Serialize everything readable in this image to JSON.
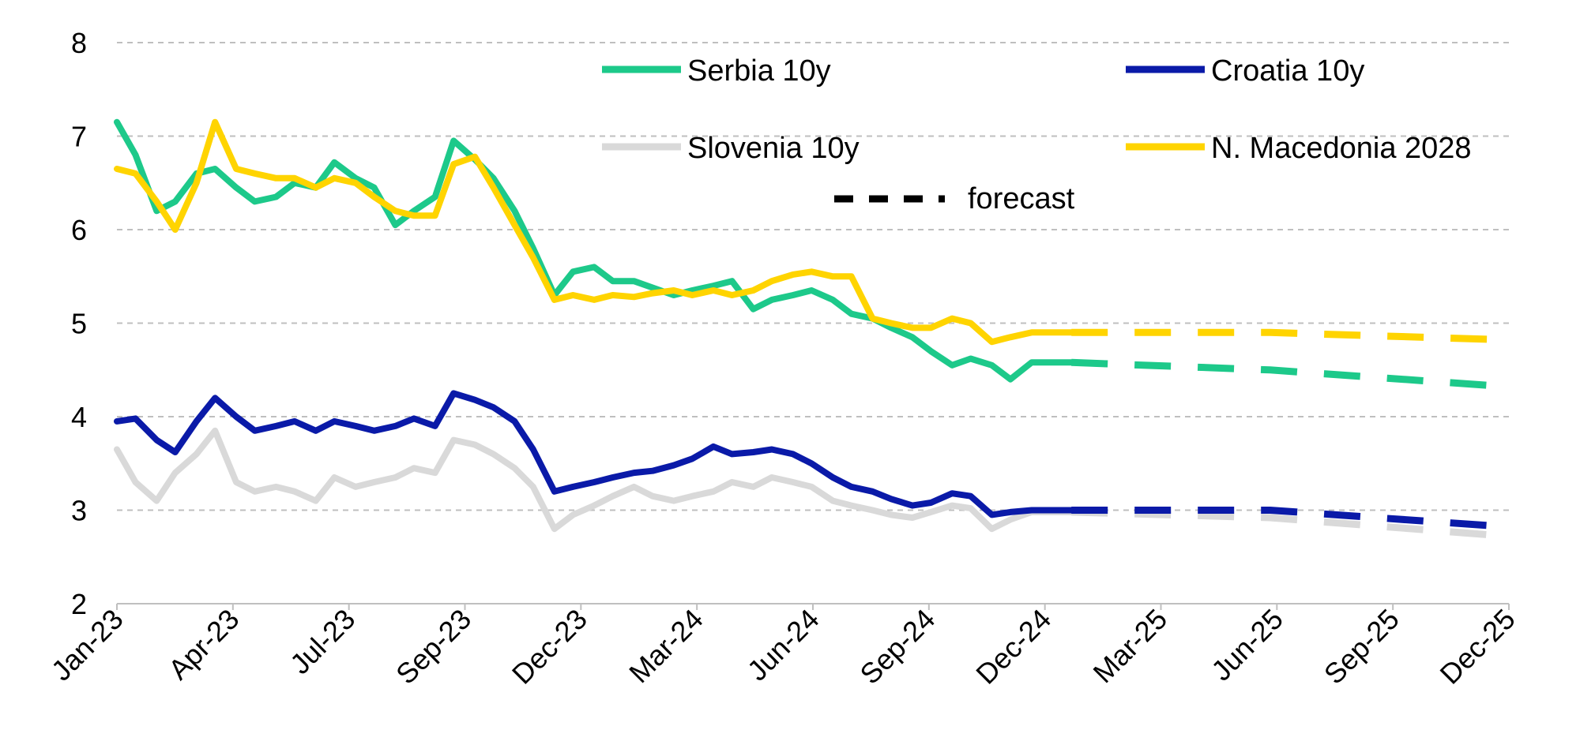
{
  "chart_data": {
    "type": "line",
    "title": "",
    "xlabel": "",
    "ylabel": "",
    "ylim": [
      2,
      8
    ],
    "yticks": [
      2,
      3,
      4,
      5,
      6,
      7,
      8
    ],
    "xlim": [
      "2023-01",
      "2025-12"
    ],
    "xticks": [
      "Jan-23",
      "Apr-23",
      "Jul-23",
      "Sep-23",
      "Dec-23",
      "Mar-24",
      "Jun-24",
      "Sep-24",
      "Dec-24",
      "Mar-25",
      "Jun-25",
      "Sep-25",
      "Dec-25"
    ],
    "grid": "horizontal dashed",
    "legend_placement": "top-right",
    "legend": {
      "serbia": "Serbia 10y",
      "croatia": "Croatia 10y",
      "slovenia": "Slovenia 10y",
      "macedonia": "N. Macedonia 2028",
      "forecast": "forecast"
    },
    "series": [
      {
        "key": "serbia",
        "name": "Serbia 10y",
        "color": "#1dc98a",
        "actual": [
          [
            "2023-01",
            7.15
          ],
          [
            "2023-01-15",
            6.8
          ],
          [
            "2023-02",
            6.2
          ],
          [
            "2023-02-15",
            6.3
          ],
          [
            "2023-03",
            6.6
          ],
          [
            "2023-03-15",
            6.65
          ],
          [
            "2023-04",
            6.45
          ],
          [
            "2023-04-15",
            6.3
          ],
          [
            "2023-05",
            6.35
          ],
          [
            "2023-05-15",
            6.5
          ],
          [
            "2023-06",
            6.45
          ],
          [
            "2023-06-15",
            6.72
          ],
          [
            "2023-07",
            6.55
          ],
          [
            "2023-07-15",
            6.45
          ],
          [
            "2023-08",
            6.05
          ],
          [
            "2023-08-15",
            6.2
          ],
          [
            "2023-09",
            6.35
          ],
          [
            "2023-09-15",
            6.95
          ],
          [
            "2023-10",
            6.75
          ],
          [
            "2023-10-15",
            6.55
          ],
          [
            "2023-11",
            6.2
          ],
          [
            "2023-11-15",
            5.8
          ],
          [
            "2023-12",
            5.3
          ],
          [
            "2023-12-15",
            5.55
          ],
          [
            "2024-01",
            5.6
          ],
          [
            "2024-01-15",
            5.45
          ],
          [
            "2024-02",
            5.45
          ],
          [
            "2024-02-15",
            5.38
          ],
          [
            "2024-03",
            5.3
          ],
          [
            "2024-03-15",
            5.35
          ],
          [
            "2024-04",
            5.4
          ],
          [
            "2024-04-15",
            5.45
          ],
          [
            "2024-05",
            5.15
          ],
          [
            "2024-05-15",
            5.25
          ],
          [
            "2024-06",
            5.3
          ],
          [
            "2024-06-15",
            5.35
          ],
          [
            "2024-07",
            5.25
          ],
          [
            "2024-07-15",
            5.1
          ],
          [
            "2024-08",
            5.05
          ],
          [
            "2024-08-15",
            4.95
          ],
          [
            "2024-09",
            4.85
          ],
          [
            "2024-09-15",
            4.7
          ],
          [
            "2024-10",
            4.55
          ],
          [
            "2024-10-15",
            4.62
          ],
          [
            "2024-11",
            4.55
          ],
          [
            "2024-11-15",
            4.4
          ],
          [
            "2024-12",
            4.58
          ],
          [
            "2025-01",
            4.58
          ]
        ],
        "forecast": [
          [
            "2025-01",
            4.58
          ],
          [
            "2025-06",
            4.5
          ],
          [
            "2025-12",
            4.32
          ]
        ]
      },
      {
        "key": "croatia",
        "name": "Croatia 10y",
        "color": "#0a1aa8",
        "actual": [
          [
            "2023-01",
            3.95
          ],
          [
            "2023-01-15",
            3.98
          ],
          [
            "2023-02",
            3.75
          ],
          [
            "2023-02-15",
            3.62
          ],
          [
            "2023-03",
            3.95
          ],
          [
            "2023-03-15",
            4.2
          ],
          [
            "2023-04",
            4.0
          ],
          [
            "2023-04-15",
            3.85
          ],
          [
            "2023-05",
            3.9
          ],
          [
            "2023-05-15",
            3.95
          ],
          [
            "2023-06",
            3.85
          ],
          [
            "2023-06-15",
            3.95
          ],
          [
            "2023-07",
            3.9
          ],
          [
            "2023-07-15",
            3.85
          ],
          [
            "2023-08",
            3.9
          ],
          [
            "2023-08-15",
            3.98
          ],
          [
            "2023-09",
            3.9
          ],
          [
            "2023-09-15",
            4.25
          ],
          [
            "2023-10",
            4.18
          ],
          [
            "2023-10-15",
            4.1
          ],
          [
            "2023-11",
            3.95
          ],
          [
            "2023-11-15",
            3.65
          ],
          [
            "2023-12",
            3.2
          ],
          [
            "2023-12-15",
            3.25
          ],
          [
            "2024-01",
            3.3
          ],
          [
            "2024-01-15",
            3.35
          ],
          [
            "2024-02",
            3.4
          ],
          [
            "2024-02-15",
            3.42
          ],
          [
            "2024-03",
            3.48
          ],
          [
            "2024-03-15",
            3.55
          ],
          [
            "2024-04",
            3.68
          ],
          [
            "2024-04-15",
            3.6
          ],
          [
            "2024-05",
            3.62
          ],
          [
            "2024-05-15",
            3.65
          ],
          [
            "2024-06",
            3.6
          ],
          [
            "2024-06-15",
            3.5
          ],
          [
            "2024-07",
            3.35
          ],
          [
            "2024-07-15",
            3.25
          ],
          [
            "2024-08",
            3.2
          ],
          [
            "2024-08-15",
            3.12
          ],
          [
            "2024-09",
            3.05
          ],
          [
            "2024-09-15",
            3.08
          ],
          [
            "2024-10",
            3.18
          ],
          [
            "2024-10-15",
            3.15
          ],
          [
            "2024-11",
            2.95
          ],
          [
            "2024-11-15",
            2.98
          ],
          [
            "2024-12",
            3.0
          ],
          [
            "2025-01",
            3.0
          ]
        ],
        "forecast": [
          [
            "2025-01",
            3.0
          ],
          [
            "2025-06",
            3.0
          ],
          [
            "2025-12",
            2.82
          ]
        ]
      },
      {
        "key": "slovenia",
        "name": "Slovenia 10y",
        "color": "#d9d9d9",
        "actual": [
          [
            "2023-01",
            3.65
          ],
          [
            "2023-01-15",
            3.3
          ],
          [
            "2023-02",
            3.1
          ],
          [
            "2023-02-15",
            3.4
          ],
          [
            "2023-03",
            3.6
          ],
          [
            "2023-03-15",
            3.85
          ],
          [
            "2023-04",
            3.3
          ],
          [
            "2023-04-15",
            3.2
          ],
          [
            "2023-05",
            3.25
          ],
          [
            "2023-05-15",
            3.2
          ],
          [
            "2023-06",
            3.1
          ],
          [
            "2023-06-15",
            3.35
          ],
          [
            "2023-07",
            3.25
          ],
          [
            "2023-07-15",
            3.3
          ],
          [
            "2023-08",
            3.35
          ],
          [
            "2023-08-15",
            3.45
          ],
          [
            "2023-09",
            3.4
          ],
          [
            "2023-09-15",
            3.75
          ],
          [
            "2023-10",
            3.7
          ],
          [
            "2023-10-15",
            3.6
          ],
          [
            "2023-11",
            3.45
          ],
          [
            "2023-11-15",
            3.25
          ],
          [
            "2023-12",
            2.8
          ],
          [
            "2023-12-15",
            2.95
          ],
          [
            "2024-01",
            3.05
          ],
          [
            "2024-01-15",
            3.15
          ],
          [
            "2024-02",
            3.25
          ],
          [
            "2024-02-15",
            3.15
          ],
          [
            "2024-03",
            3.1
          ],
          [
            "2024-03-15",
            3.15
          ],
          [
            "2024-04",
            3.2
          ],
          [
            "2024-04-15",
            3.3
          ],
          [
            "2024-05",
            3.25
          ],
          [
            "2024-05-15",
            3.35
          ],
          [
            "2024-06",
            3.3
          ],
          [
            "2024-06-15",
            3.25
          ],
          [
            "2024-07",
            3.1
          ],
          [
            "2024-07-15",
            3.05
          ],
          [
            "2024-08",
            3.0
          ],
          [
            "2024-08-15",
            2.95
          ],
          [
            "2024-09",
            2.92
          ],
          [
            "2024-09-15",
            2.98
          ],
          [
            "2024-10",
            3.05
          ],
          [
            "2024-10-15",
            3.02
          ],
          [
            "2024-11",
            2.8
          ],
          [
            "2024-11-15",
            2.9
          ],
          [
            "2024-12",
            2.98
          ],
          [
            "2025-01",
            2.98
          ]
        ],
        "forecast": [
          [
            "2025-01",
            2.98
          ],
          [
            "2025-06",
            2.92
          ],
          [
            "2025-12",
            2.72
          ]
        ]
      },
      {
        "key": "macedonia",
        "name": "N. Macedonia 2028",
        "color": "#ffd400",
        "actual": [
          [
            "2023-01",
            6.65
          ],
          [
            "2023-01-15",
            6.6
          ],
          [
            "2023-02",
            6.3
          ],
          [
            "2023-02-15",
            6.0
          ],
          [
            "2023-03",
            6.5
          ],
          [
            "2023-03-15",
            7.15
          ],
          [
            "2023-04",
            6.65
          ],
          [
            "2023-04-15",
            6.6
          ],
          [
            "2023-05",
            6.55
          ],
          [
            "2023-05-15",
            6.55
          ],
          [
            "2023-06",
            6.45
          ],
          [
            "2023-06-15",
            6.55
          ],
          [
            "2023-07",
            6.5
          ],
          [
            "2023-07-15",
            6.35
          ],
          [
            "2023-08",
            6.2
          ],
          [
            "2023-08-15",
            6.15
          ],
          [
            "2023-09",
            6.15
          ],
          [
            "2023-09-15",
            6.7
          ],
          [
            "2023-10",
            6.78
          ],
          [
            "2023-10-15",
            6.45
          ],
          [
            "2023-11",
            6.05
          ],
          [
            "2023-11-15",
            5.7
          ],
          [
            "2023-12",
            5.25
          ],
          [
            "2023-12-15",
            5.3
          ],
          [
            "2024-01",
            5.25
          ],
          [
            "2024-01-15",
            5.3
          ],
          [
            "2024-02",
            5.28
          ],
          [
            "2024-02-15",
            5.32
          ],
          [
            "2024-03",
            5.35
          ],
          [
            "2024-03-15",
            5.3
          ],
          [
            "2024-04",
            5.35
          ],
          [
            "2024-04-15",
            5.3
          ],
          [
            "2024-05",
            5.35
          ],
          [
            "2024-05-15",
            5.45
          ],
          [
            "2024-06",
            5.52
          ],
          [
            "2024-06-15",
            5.55
          ],
          [
            "2024-07",
            5.5
          ],
          [
            "2024-07-15",
            5.5
          ],
          [
            "2024-08",
            5.05
          ],
          [
            "2024-08-15",
            5.0
          ],
          [
            "2024-09",
            4.95
          ],
          [
            "2024-09-15",
            4.95
          ],
          [
            "2024-10",
            5.05
          ],
          [
            "2024-10-15",
            5.0
          ],
          [
            "2024-11",
            4.8
          ],
          [
            "2024-11-15",
            4.85
          ],
          [
            "2024-12",
            4.9
          ],
          [
            "2025-01",
            4.9
          ]
        ],
        "forecast": [
          [
            "2025-01",
            4.9
          ],
          [
            "2025-06",
            4.9
          ],
          [
            "2025-12",
            4.82
          ]
        ]
      }
    ]
  },
  "colors": {
    "grid": "#bfbfbf",
    "axis": "#bfbfbf",
    "forecast_legend": "#000000"
  }
}
